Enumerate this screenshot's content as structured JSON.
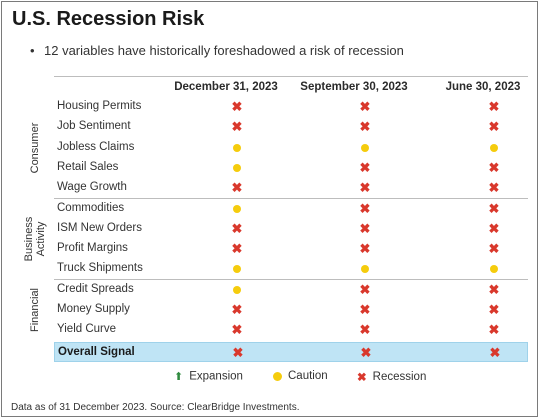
{
  "title": "U.S. Recession Risk",
  "bullet_text": "12 variables have historically foreshadowed a risk of recession",
  "columns": [
    "December 31, 2023",
    "September 30, 2023",
    "June 30, 2023"
  ],
  "groups": [
    {
      "label_line1": "Consumer",
      "label_line2": ""
    },
    {
      "label_line1": "Business",
      "label_line2": "Activity"
    },
    {
      "label_line1": "Financial",
      "label_line2": ""
    }
  ],
  "rows": [
    {
      "label": "Housing Permits",
      "values": [
        "recession",
        "recession",
        "recession"
      ]
    },
    {
      "label": "Job Sentiment",
      "values": [
        "recession",
        "recession",
        "recession"
      ]
    },
    {
      "label": "Jobless Claims",
      "values": [
        "caution",
        "caution",
        "caution"
      ]
    },
    {
      "label": "Retail Sales",
      "values": [
        "caution",
        "recession",
        "recession"
      ]
    },
    {
      "label": "Wage Growth",
      "values": [
        "recession",
        "recession",
        "recession"
      ]
    },
    {
      "label": "Commodities",
      "values": [
        "caution",
        "recession",
        "recession"
      ]
    },
    {
      "label": "ISM New Orders",
      "values": [
        "recession",
        "recession",
        "recession"
      ]
    },
    {
      "label": "Profit Margins",
      "values": [
        "recession",
        "recession",
        "recession"
      ]
    },
    {
      "label": "Truck Shipments",
      "values": [
        "caution",
        "caution",
        "caution"
      ]
    },
    {
      "label": "Credit Spreads",
      "values": [
        "caution",
        "recession",
        "recession"
      ]
    },
    {
      "label": "Money Supply",
      "values": [
        "recession",
        "recession",
        "recession"
      ]
    },
    {
      "label": "Yield Curve",
      "values": [
        "recession",
        "recession",
        "recession"
      ]
    }
  ],
  "overall": {
    "label": "Overall Signal",
    "values": [
      "recession",
      "recession",
      "recession"
    ]
  },
  "legend": {
    "expansion": "Expansion",
    "caution": "Caution",
    "recession": "Recession"
  },
  "symbols": {
    "recession": "✖",
    "expansion": "⬆"
  },
  "colors": {
    "recession": "#d9382c",
    "caution": "#f5cc0d",
    "expansion": "#2f8a3e",
    "overall_bg": "#bfe4f5"
  },
  "source": "Data as of 31 December 2023. Source: ClearBridge Investments."
}
